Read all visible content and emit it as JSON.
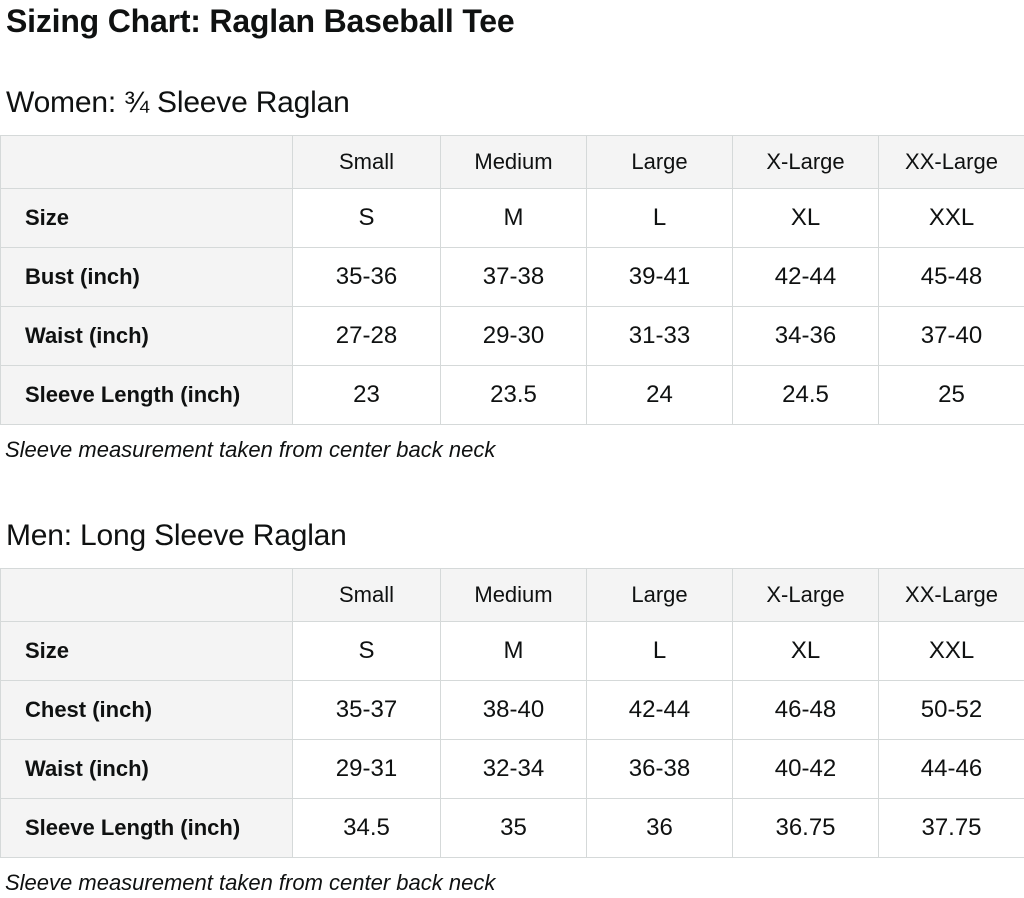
{
  "page": {
    "title": "Sizing Chart: Raglan Baseball Tee"
  },
  "colors": {
    "text": "#0f1111",
    "header_cell_bg": "#f4f4f4",
    "data_cell_bg": "#ffffff",
    "grid_border": "#d5d9d9",
    "page_bg": "#ffffff"
  },
  "women": {
    "heading": "Women: ¾ Sleeve Raglan",
    "note": "Sleeve measurement taken from center back neck",
    "table": {
      "columns": [
        "",
        "Small",
        "Medium",
        "Large",
        "X-Large",
        "XX-Large"
      ],
      "rows": [
        {
          "label": "Size",
          "values": [
            "S",
            "M",
            "L",
            "XL",
            "XXL"
          ]
        },
        {
          "label": "Bust (inch)",
          "values": [
            "35-36",
            "37-38",
            "39-41",
            "42-44",
            "45-48"
          ]
        },
        {
          "label": "Waist (inch)",
          "values": [
            "27-28",
            "29-30",
            "31-33",
            "34-36",
            "37-40"
          ]
        },
        {
          "label": "Sleeve Length (inch)",
          "values": [
            "23",
            "23.5",
            "24",
            "24.5",
            "25"
          ]
        }
      ]
    }
  },
  "men": {
    "heading": "Men: Long Sleeve Raglan",
    "note": "Sleeve measurement taken from center back neck",
    "table": {
      "columns": [
        "",
        "Small",
        "Medium",
        "Large",
        "X-Large",
        "XX-Large"
      ],
      "rows": [
        {
          "label": "Size",
          "values": [
            "S",
            "M",
            "L",
            "XL",
            "XXL"
          ]
        },
        {
          "label": "Chest (inch)",
          "values": [
            "35-37",
            "38-40",
            "42-44",
            "46-48",
            "50-52"
          ]
        },
        {
          "label": "Waist (inch)",
          "values": [
            "29-31",
            "32-34",
            "36-38",
            "40-42",
            "44-46"
          ]
        },
        {
          "label": "Sleeve Length (inch)",
          "values": [
            "34.5",
            "35",
            "36",
            "36.75",
            "37.75"
          ]
        }
      ]
    }
  }
}
